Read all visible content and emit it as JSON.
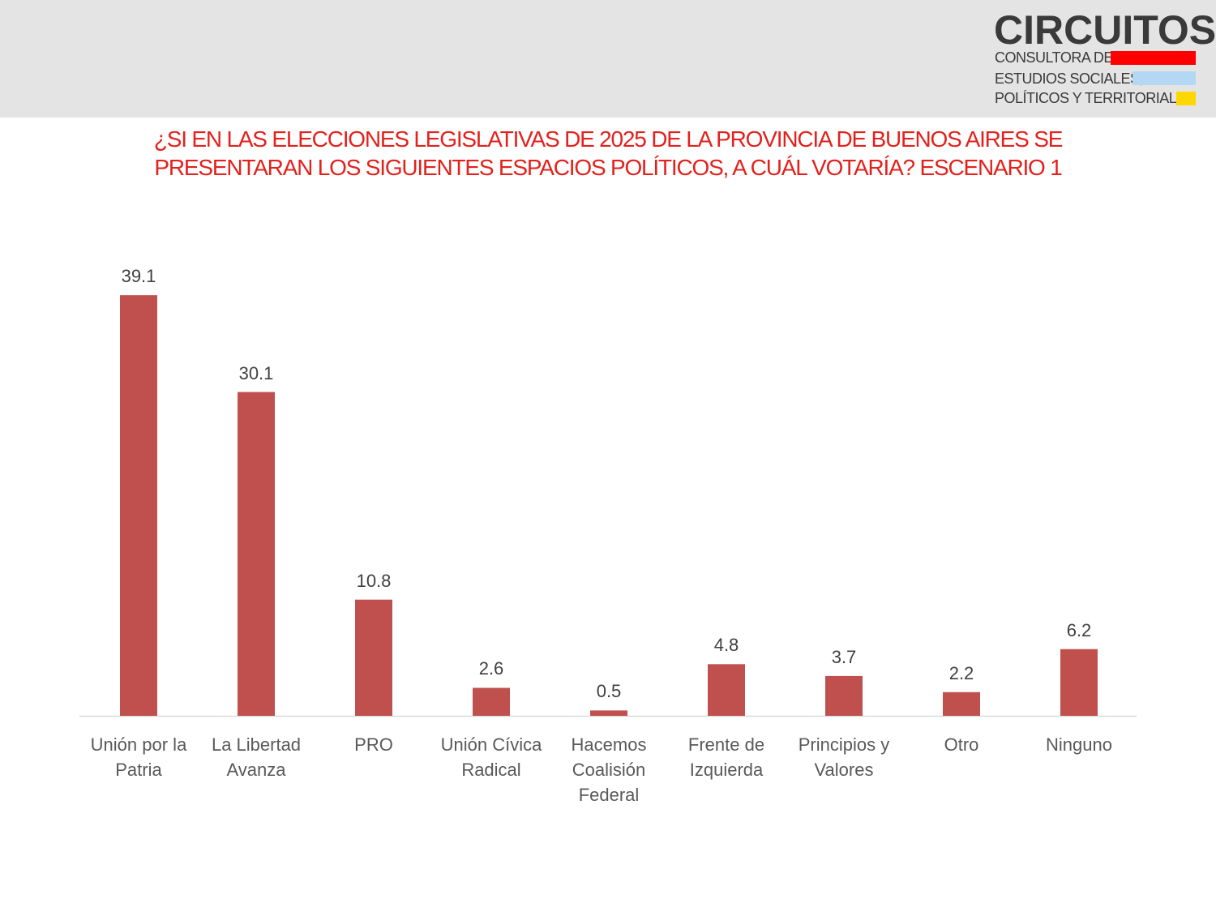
{
  "logo": {
    "name": "CIRCUITOS",
    "line1": "CONSULTORA DE",
    "line2": "ESTUDIOS SOCIALES,",
    "line3": "POLÍTICOS Y TERRITORIALES"
  },
  "chart_data": {
    "type": "bar",
    "title": "¿SI EN LAS ELECCIONES LEGISLATIVAS DE 2025 DE LA PROVINCIA DE BUENOS AIRES SE PRESENTARAN LOS SIGUIENTES ESPACIOS POLÍTICOS, A CUÁL VOTARÍA? ESCENARIO 1",
    "categories": [
      "Unión por la Patria",
      "La Libertad Avanza",
      "PRO",
      "Unión Cívica Radical",
      "Hacemos Coalisión Federal",
      "Frente de Izquierda",
      "Principios y Valores",
      "Otro",
      "Ninguno"
    ],
    "values": [
      39.1,
      30.1,
      10.8,
      2.6,
      0.5,
      4.8,
      3.7,
      2.2,
      6.2
    ],
    "color": "#c0504d"
  }
}
